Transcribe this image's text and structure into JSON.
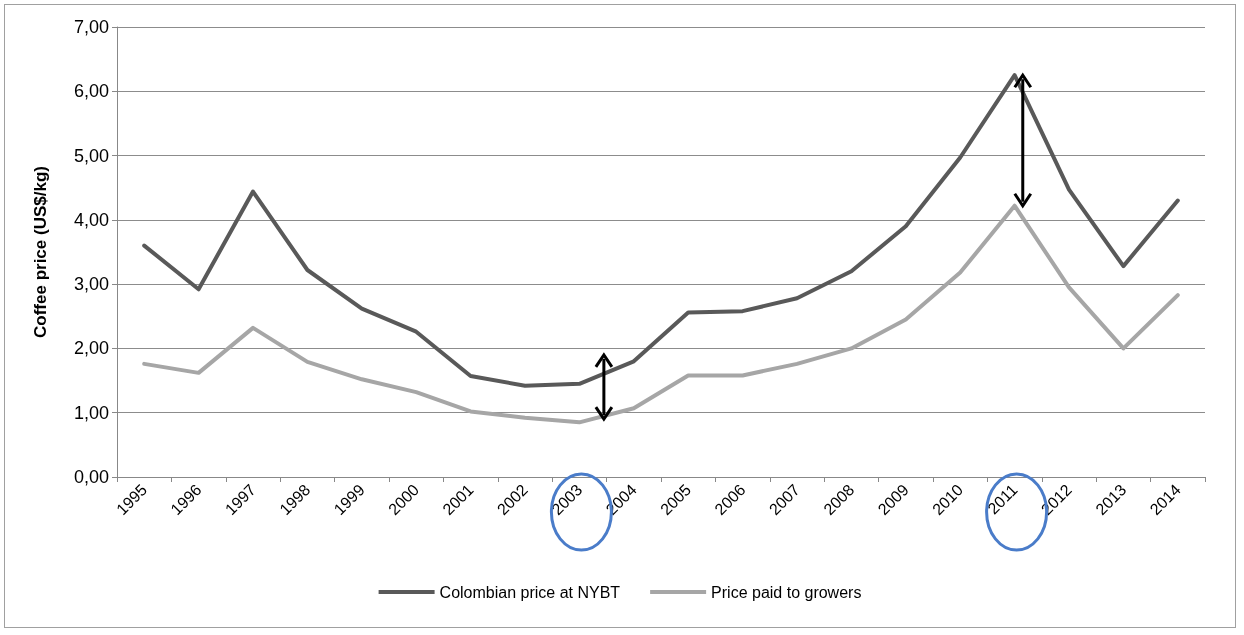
{
  "chart_data": {
    "type": "line",
    "ylabel": "Coffee price (US$/kg)",
    "categories": [
      "1995",
      "1996",
      "1997",
      "1998",
      "1999",
      "2000",
      "2001",
      "2002",
      "2003",
      "2004",
      "2005",
      "2006",
      "2007",
      "2008",
      "2009",
      "2010",
      "2011",
      "2012",
      "2013",
      "2014"
    ],
    "series": [
      {
        "name": "Colombian price at NYBT",
        "color": "#595959",
        "values": [
          3.6,
          2.92,
          4.44,
          3.22,
          2.62,
          2.26,
          1.57,
          1.42,
          1.45,
          1.8,
          2.56,
          2.58,
          2.78,
          3.2,
          3.9,
          4.97,
          6.25,
          4.47,
          3.28,
          4.3
        ]
      },
      {
        "name": "Price paid to growers",
        "color": "#a6a6a6",
        "values": [
          1.76,
          1.62,
          2.32,
          1.79,
          1.52,
          1.32,
          1.02,
          0.92,
          0.85,
          1.07,
          1.58,
          1.58,
          1.76,
          2.0,
          2.45,
          3.18,
          4.22,
          2.95,
          2.0,
          2.83
        ]
      }
    ],
    "ylim": [
      0,
      7
    ],
    "yticks": [
      {
        "value": 0,
        "label": "0,00"
      },
      {
        "value": 1,
        "label": "1,00"
      },
      {
        "value": 2,
        "label": "2,00"
      },
      {
        "value": 3,
        "label": "3,00"
      },
      {
        "value": 4,
        "label": "4,00"
      },
      {
        "value": 5,
        "label": "5,00"
      },
      {
        "value": 6,
        "label": "6,00"
      },
      {
        "value": 7,
        "label": "7,00"
      }
    ],
    "grid": "y",
    "legend": "bottom",
    "marker": "none",
    "line_style": "solid"
  }
}
